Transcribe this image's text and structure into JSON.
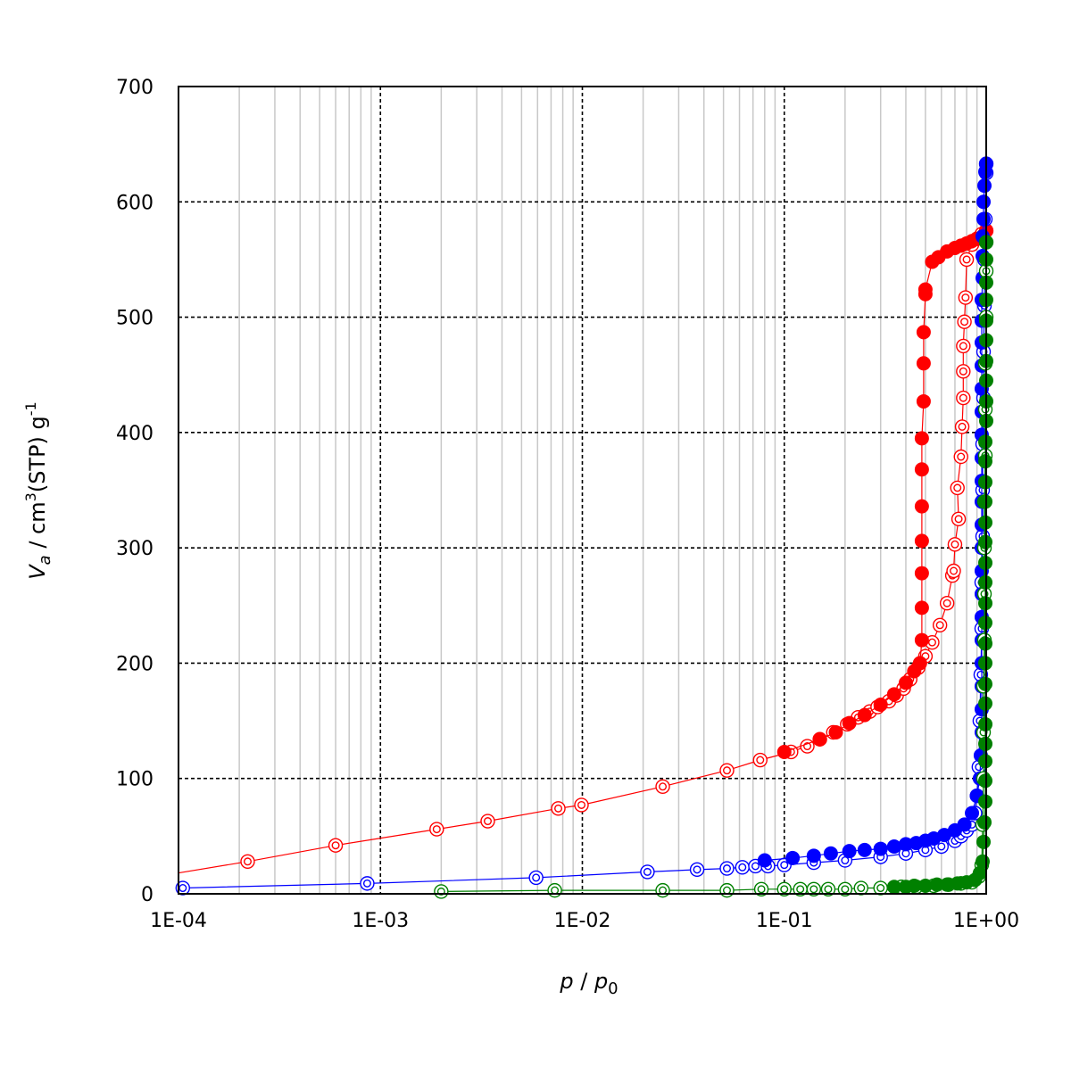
{
  "chart_data": {
    "type": "scatter",
    "x_scale": "log",
    "xlim": [
      0.0001,
      1
    ],
    "ylim": [
      0,
      700
    ],
    "x_ticks": [
      "1E-04",
      "1E-03",
      "1E-02",
      "1E-01",
      "1E+00"
    ],
    "y_ticks": [
      "0",
      "100",
      "200",
      "300",
      "400",
      "500",
      "600",
      "700"
    ],
    "xlabel": {
      "main": "p",
      "slash": " / ",
      "base": "p",
      "sub": "0"
    },
    "ylabel": {
      "main": "V",
      "sub": "a",
      "unit": " / cm",
      "sup": "3",
      "rest": "(STP) g",
      "sup2": "-1"
    },
    "grid": {
      "major": "dashed",
      "minor": "light",
      "x_minor": true
    },
    "colors": {
      "red": "#ff0000",
      "blue": "#0000ff",
      "green": "#008000"
    },
    "series": [
      {
        "color": "#ff0000",
        "marker": "double-circle-open",
        "line": true,
        "points": [
          [
            9.95e-05,
            18
          ],
          [
            0.00022,
            28
          ],
          [
            0.0006,
            42
          ],
          [
            0.0019,
            56
          ],
          [
            0.0034,
            63
          ],
          [
            0.0076,
            74
          ],
          [
            0.0099,
            77
          ],
          [
            0.025,
            93
          ],
          [
            0.052,
            107
          ],
          [
            0.076,
            116
          ],
          [
            0.108,
            123
          ],
          [
            0.13,
            128
          ],
          [
            0.15,
            134
          ],
          [
            0.175,
            140
          ],
          [
            0.205,
            147
          ],
          [
            0.232,
            153
          ],
          [
            0.265,
            158
          ],
          [
            0.29,
            162
          ],
          [
            0.33,
            167
          ],
          [
            0.36,
            172
          ],
          [
            0.39,
            178
          ],
          [
            0.42,
            186
          ],
          [
            0.46,
            196
          ],
          [
            0.5,
            206
          ],
          [
            0.54,
            218
          ],
          [
            0.59,
            233
          ],
          [
            0.64,
            252
          ],
          [
            0.68,
            276
          ],
          [
            0.69,
            280
          ],
          [
            0.7,
            303
          ],
          [
            0.73,
            325
          ],
          [
            0.72,
            352
          ],
          [
            0.75,
            379
          ],
          [
            0.76,
            405
          ],
          [
            0.77,
            430
          ],
          [
            0.77,
            453
          ],
          [
            0.77,
            475
          ],
          [
            0.78,
            496
          ],
          [
            0.79,
            517
          ],
          [
            0.8,
            550
          ],
          [
            0.85,
            563
          ],
          [
            0.9,
            568
          ],
          [
            0.95,
            572
          ],
          [
            1.0,
            575
          ]
        ]
      },
      {
        "color": "#ff0000",
        "marker": "filled-circle",
        "line": true,
        "points": [
          [
            1.0,
            575
          ],
          [
            0.97,
            571
          ],
          [
            0.9,
            568
          ],
          [
            0.85,
            566
          ],
          [
            0.8,
            564
          ],
          [
            0.75,
            562
          ],
          [
            0.7,
            560
          ],
          [
            0.64,
            557
          ],
          [
            0.58,
            552
          ],
          [
            0.54,
            548
          ],
          [
            0.5,
            524
          ],
          [
            0.5,
            520
          ],
          [
            0.49,
            487
          ],
          [
            0.49,
            460
          ],
          [
            0.49,
            427
          ],
          [
            0.48,
            395
          ],
          [
            0.48,
            368
          ],
          [
            0.48,
            336
          ],
          [
            0.48,
            306
          ],
          [
            0.48,
            278
          ],
          [
            0.48,
            248
          ],
          [
            0.48,
            220
          ],
          [
            0.47,
            200
          ],
          [
            0.44,
            193
          ],
          [
            0.4,
            183
          ],
          [
            0.35,
            173
          ],
          [
            0.3,
            164
          ],
          [
            0.25,
            155
          ],
          [
            0.21,
            148
          ],
          [
            0.18,
            140
          ],
          [
            0.15,
            134
          ],
          [
            0.1,
            123
          ]
        ]
      },
      {
        "color": "#0000ff",
        "marker": "double-circle-open",
        "line": true,
        "points": [
          [
            0.000105,
            5
          ],
          [
            0.00086,
            9
          ],
          [
            0.0059,
            14
          ],
          [
            0.021,
            19
          ],
          [
            0.037,
            21
          ],
          [
            0.052,
            22
          ],
          [
            0.062,
            23
          ],
          [
            0.072,
            24
          ],
          [
            0.083,
            24
          ],
          [
            0.1,
            25
          ],
          [
            0.14,
            27
          ],
          [
            0.2,
            29
          ],
          [
            0.3,
            32
          ],
          [
            0.4,
            35
          ],
          [
            0.5,
            38
          ],
          [
            0.6,
            41
          ],
          [
            0.7,
            46
          ],
          [
            0.75,
            50
          ],
          [
            0.8,
            55
          ],
          [
            0.85,
            60
          ],
          [
            0.88,
            70
          ],
          [
            0.9,
            85
          ],
          [
            0.92,
            110
          ],
          [
            0.93,
            150
          ],
          [
            0.94,
            190
          ],
          [
            0.95,
            230
          ],
          [
            0.95,
            270
          ],
          [
            0.96,
            310
          ],
          [
            0.96,
            350
          ],
          [
            0.96,
            390
          ],
          [
            0.97,
            430
          ],
          [
            0.97,
            470
          ],
          [
            0.98,
            510
          ],
          [
            0.98,
            550
          ],
          [
            0.99,
            585
          ],
          [
            1.0,
            625
          ],
          [
            1.0,
            633
          ]
        ]
      },
      {
        "color": "#0000ff",
        "marker": "filled-circle",
        "line": true,
        "points": [
          [
            1.0,
            633
          ],
          [
            0.99,
            626
          ],
          [
            0.98,
            614
          ],
          [
            0.97,
            600
          ],
          [
            0.97,
            585
          ],
          [
            0.96,
            570
          ],
          [
            0.96,
            553
          ],
          [
            0.96,
            534
          ],
          [
            0.95,
            515
          ],
          [
            0.95,
            497
          ],
          [
            0.95,
            478
          ],
          [
            0.95,
            458
          ],
          [
            0.95,
            438
          ],
          [
            0.95,
            418
          ],
          [
            0.95,
            398
          ],
          [
            0.95,
            378
          ],
          [
            0.95,
            358
          ],
          [
            0.95,
            340
          ],
          [
            0.95,
            320
          ],
          [
            0.95,
            300
          ],
          [
            0.95,
            280
          ],
          [
            0.95,
            260
          ],
          [
            0.95,
            240
          ],
          [
            0.95,
            220
          ],
          [
            0.95,
            200
          ],
          [
            0.95,
            180
          ],
          [
            0.95,
            160
          ],
          [
            0.95,
            140
          ],
          [
            0.94,
            120
          ],
          [
            0.93,
            100
          ],
          [
            0.9,
            85
          ],
          [
            0.85,
            70
          ],
          [
            0.78,
            60
          ],
          [
            0.7,
            55
          ],
          [
            0.62,
            51
          ],
          [
            0.55,
            48
          ],
          [
            0.5,
            46
          ],
          [
            0.45,
            44
          ],
          [
            0.4,
            43
          ],
          [
            0.35,
            41
          ],
          [
            0.3,
            39
          ],
          [
            0.25,
            38
          ],
          [
            0.21,
            37
          ],
          [
            0.17,
            35
          ],
          [
            0.14,
            33
          ],
          [
            0.11,
            31
          ],
          [
            0.08,
            29
          ]
        ]
      },
      {
        "color": "#008000",
        "marker": "double-circle-open",
        "line": true,
        "points": [
          [
            0.002,
            2
          ],
          [
            0.0073,
            3
          ],
          [
            0.025,
            3
          ],
          [
            0.052,
            3
          ],
          [
            0.077,
            4
          ],
          [
            0.1,
            4
          ],
          [
            0.12,
            4
          ],
          [
            0.14,
            4
          ],
          [
            0.165,
            4
          ],
          [
            0.2,
            4
          ],
          [
            0.24,
            5
          ],
          [
            0.3,
            5
          ],
          [
            0.38,
            6
          ],
          [
            0.45,
            6
          ],
          [
            0.55,
            7
          ],
          [
            0.65,
            8
          ],
          [
            0.75,
            9
          ],
          [
            0.85,
            10
          ],
          [
            0.92,
            15
          ],
          [
            0.95,
            25
          ],
          [
            0.96,
            60
          ],
          [
            0.97,
            100
          ],
          [
            0.97,
            140
          ],
          [
            0.97,
            180
          ],
          [
            0.98,
            220
          ],
          [
            0.98,
            260
          ],
          [
            0.98,
            300
          ],
          [
            0.98,
            340
          ],
          [
            0.99,
            380
          ],
          [
            0.99,
            420
          ],
          [
            0.99,
            460
          ],
          [
            1.0,
            500
          ],
          [
            1.0,
            540
          ],
          [
            1.0,
            565
          ]
        ]
      },
      {
        "color": "#008000",
        "marker": "filled-circle",
        "line": true,
        "points": [
          [
            1.0,
            565
          ],
          [
            1.0,
            550
          ],
          [
            1.0,
            530
          ],
          [
            1.0,
            515
          ],
          [
            1.0,
            497
          ],
          [
            1.0,
            480
          ],
          [
            1.0,
            462
          ],
          [
            1.0,
            445
          ],
          [
            1.0,
            427
          ],
          [
            1.0,
            410
          ],
          [
            0.99,
            392
          ],
          [
            0.99,
            375
          ],
          [
            0.99,
            357
          ],
          [
            0.99,
            340
          ],
          [
            0.99,
            322
          ],
          [
            0.99,
            305
          ],
          [
            0.99,
            287
          ],
          [
            0.99,
            270
          ],
          [
            0.99,
            252
          ],
          [
            0.99,
            235
          ],
          [
            0.99,
            217
          ],
          [
            0.99,
            200
          ],
          [
            0.99,
            182
          ],
          [
            0.99,
            165
          ],
          [
            0.99,
            147
          ],
          [
            0.99,
            130
          ],
          [
            0.99,
            115
          ],
          [
            0.99,
            98
          ],
          [
            0.99,
            80
          ],
          [
            0.98,
            62
          ],
          [
            0.97,
            45
          ],
          [
            0.96,
            28
          ],
          [
            0.93,
            18
          ],
          [
            0.88,
            12
          ],
          [
            0.8,
            10
          ],
          [
            0.72,
            9
          ],
          [
            0.64,
            8
          ],
          [
            0.57,
            8
          ],
          [
            0.5,
            7
          ],
          [
            0.44,
            7
          ],
          [
            0.4,
            6
          ],
          [
            0.35,
            6
          ]
        ]
      }
    ]
  }
}
